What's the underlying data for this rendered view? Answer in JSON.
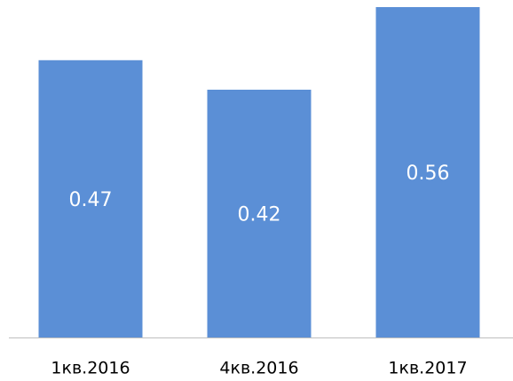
{
  "chart_data": {
    "type": "bar",
    "categories": [
      "1кв.2016",
      "4кв.2016",
      "1кв.2017"
    ],
    "values": [
      0.47,
      0.42,
      0.56
    ],
    "color": "#5b8fd6"
  }
}
